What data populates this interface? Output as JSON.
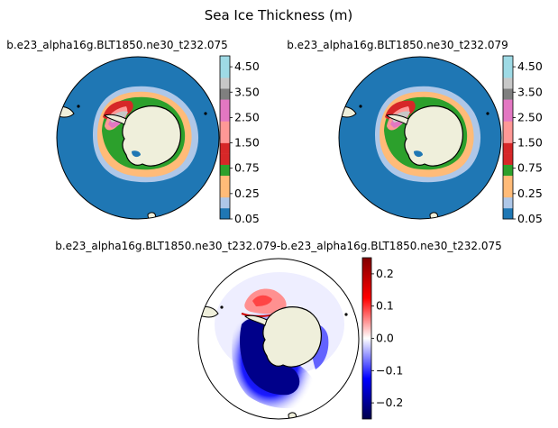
{
  "figure": {
    "title": "Sea Ice Thickness (m)"
  },
  "colors": {
    "ocean": "#1f77b4",
    "land": "#efefdb",
    "discrete_cmap": [
      "#1f77b4",
      "#aec7e8",
      "#ff7f0e",
      "#ffbb78",
      "#2ca02c",
      "#98df8a",
      "#d62728",
      "#ff9896",
      "#9467bd",
      "#c5b0d5",
      "#8c564b",
      "#c49c94",
      "#e377c2",
      "#f7b6d2",
      "#7f7f7f",
      "#c7c7c7",
      "#bcbd22",
      "#dbdb8d",
      "#17becf",
      "#9edae5"
    ],
    "diverging_cmap": [
      "#00004c",
      "#0000ff",
      "#ffffff",
      "#ff0000",
      "#800000"
    ]
  },
  "chart_data": [
    {
      "type": "heatmap",
      "projection": "south-polar-stereographic",
      "title": "b.e23_alpha16g.BLT1850.ne30_t232.075",
      "colorbar": {
        "ticks": [
          "0.05",
          "0.25",
          "0.75",
          "1.50",
          "2.50",
          "3.50",
          "4.50"
        ],
        "bounds": [
          0.05,
          0.1,
          0.25,
          0.5,
          0.75,
          1.0,
          1.5,
          2.0,
          2.5,
          3.0,
          3.5,
          4.0,
          4.5,
          5.0
        ],
        "extend": "max"
      }
    },
    {
      "type": "heatmap",
      "projection": "south-polar-stereographic",
      "title": "b.e23_alpha16g.BLT1850.ne30_t232.079",
      "colorbar": {
        "ticks": [
          "0.05",
          "0.25",
          "0.75",
          "1.50",
          "2.50",
          "3.50",
          "4.50"
        ],
        "bounds": [
          0.05,
          0.1,
          0.25,
          0.5,
          0.75,
          1.0,
          1.5,
          2.0,
          2.5,
          3.0,
          3.5,
          4.0,
          4.5,
          5.0
        ],
        "extend": "max"
      }
    },
    {
      "type": "heatmap",
      "projection": "south-polar-stereographic",
      "title": "b.e23_alpha16g.BLT1850.ne30_t232.079-b.e23_alpha16g.BLT1850.ne30_t232.075",
      "colorbar": {
        "ticks": [
          "0.2",
          "0.1",
          "0.0",
          "−0.1",
          "−0.2"
        ],
        "range": [
          -0.25,
          0.25
        ],
        "colormap": "seismic"
      }
    }
  ]
}
